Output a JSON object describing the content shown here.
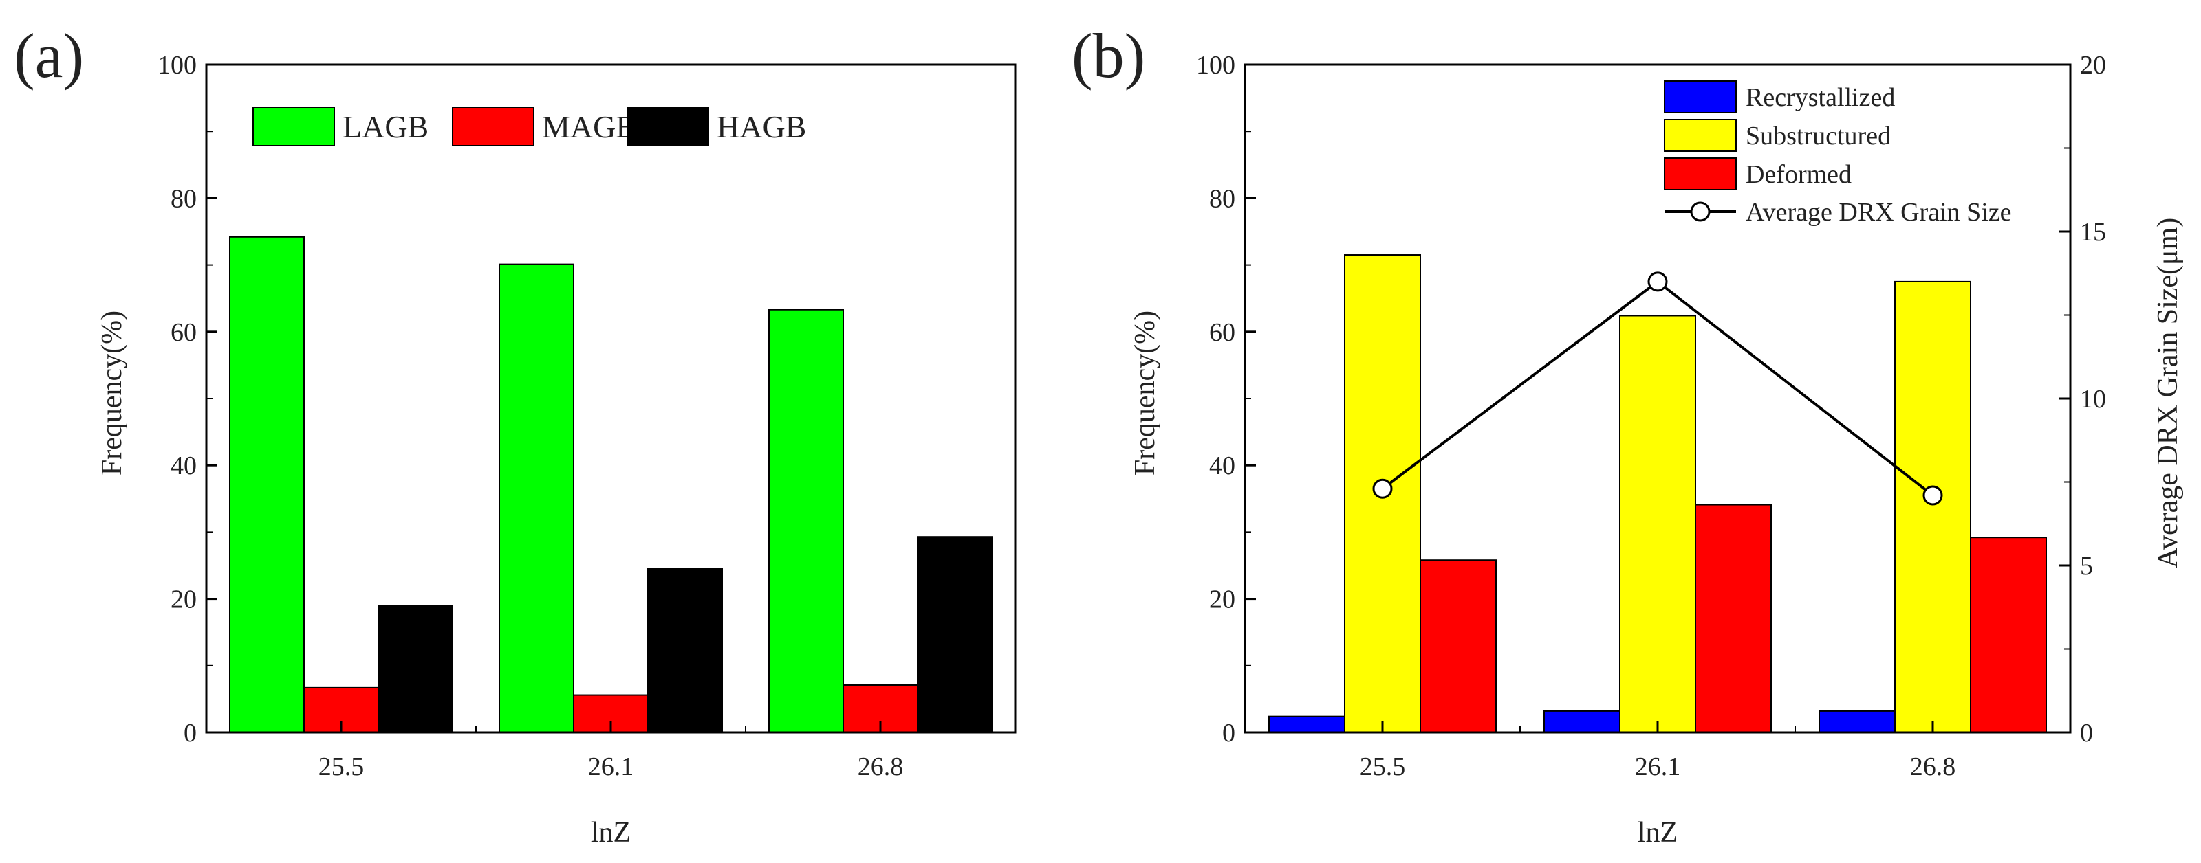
{
  "panels": [
    {
      "label": "(a)",
      "chart_data": {
        "type": "bar",
        "categories": [
          "25.5",
          "26.1",
          "26.8"
        ],
        "series": [
          {
            "name": "LAGB",
            "color": "#00ff00",
            "values": [
              74.2,
              70.1,
              63.3
            ]
          },
          {
            "name": "MAGB",
            "color": "#ff0000",
            "values": [
              6.7,
              5.6,
              7.1
            ]
          },
          {
            "name": "HAGB",
            "color": "#000000",
            "values": [
              19.0,
              24.5,
              29.3
            ]
          }
        ],
        "xlabel": "lnZ",
        "ylabel": "Frequency(%)",
        "ylim": [
          0,
          100
        ],
        "yticks": [
          "0",
          "20",
          "40",
          "60",
          "80",
          "100"
        ],
        "legend": "top, horizontal"
      }
    },
    {
      "label": "(b)",
      "chart_data": {
        "type": "bar",
        "categories": [
          "25.5",
          "26.1",
          "26.8"
        ],
        "series": [
          {
            "name": "Recrystallized",
            "color": "#0000ff",
            "values": [
              2.4,
              3.2,
              3.2
            ]
          },
          {
            "name": "Substructured",
            "color": "#ffff00",
            "values": [
              71.5,
              62.4,
              67.5
            ]
          },
          {
            "name": "Deformed",
            "color": "#ff0000",
            "values": [
              25.8,
              34.1,
              29.2
            ]
          }
        ],
        "line_series": {
          "name": "Average DRX Grain Size",
          "axis": "right",
          "color": "#000000",
          "values": [
            7.3,
            13.5,
            7.1
          ]
        },
        "xlabel": "lnZ",
        "ylabel": "Frequency(%)",
        "ylim": [
          0,
          100
        ],
        "yticks": [
          "0",
          "20",
          "40",
          "60",
          "80",
          "100"
        ],
        "y2label": "Average DRX Grain Size(μm)",
        "y2lim": [
          0,
          20
        ],
        "y2ticks": [
          "0",
          "5",
          "10",
          "15",
          "20"
        ],
        "legend": "top-right, vertical"
      }
    }
  ]
}
